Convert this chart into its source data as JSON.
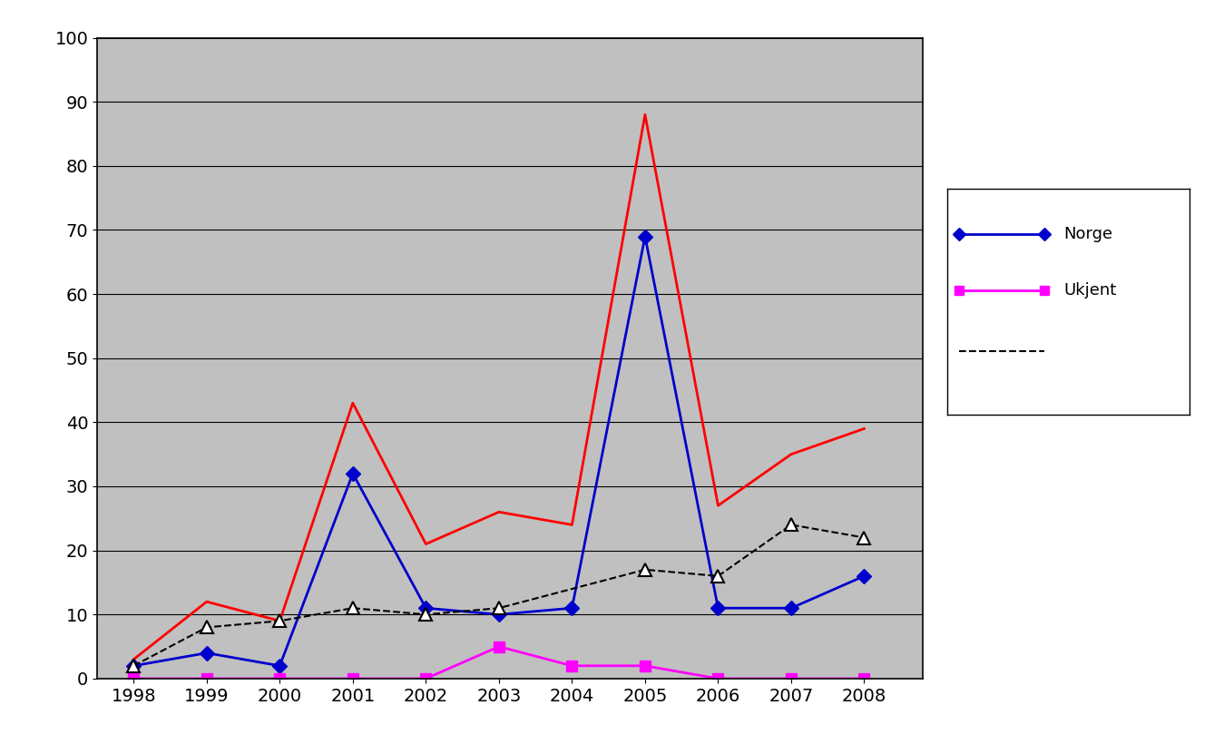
{
  "years": [
    1998,
    1999,
    2000,
    2001,
    2002,
    2003,
    2004,
    2005,
    2006,
    2007,
    2008
  ],
  "norge": [
    2,
    4,
    2,
    32,
    11,
    10,
    11,
    69,
    11,
    11,
    16
  ],
  "ukjent": [
    0,
    0,
    0,
    0,
    0,
    5,
    2,
    2,
    0,
    0,
    0
  ],
  "red_line": [
    3,
    12,
    9,
    43,
    21,
    26,
    24,
    88,
    27,
    35,
    39
  ],
  "dashed_line": [
    2,
    8,
    9,
    11,
    10,
    11,
    null,
    17,
    16,
    24,
    22
  ],
  "norge_color": "#0000CC",
  "ukjent_color": "#FF00FF",
  "red_color": "#FF0000",
  "dashed_color": "#000000",
  "background_color": "#C0C0C0",
  "ylim": [
    0,
    100
  ],
  "yticks": [
    0,
    10,
    20,
    30,
    40,
    50,
    60,
    70,
    80,
    90,
    100
  ],
  "legend_labels": [
    "Norge",
    "Ukjent",
    ""
  ],
  "figsize": [
    13.38,
    8.31
  ],
  "dpi": 100
}
